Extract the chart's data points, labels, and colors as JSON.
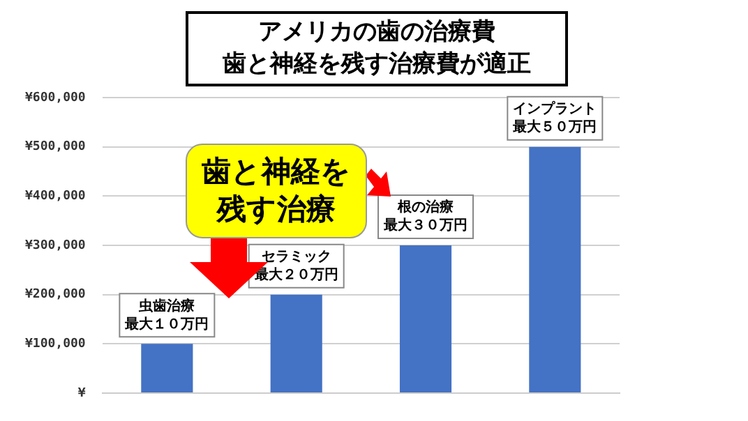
{
  "chart_data": {
    "type": "bar",
    "title": "アメリカの歯の治療費",
    "subtitle": "歯と神経を残す治療費が適正",
    "categories": [
      "虫歯治療",
      "セラミック",
      "根の治療",
      "インプラント"
    ],
    "values": [
      100000,
      200000,
      300000,
      500000
    ],
    "value_labels": [
      "最大１０万円",
      "最大２０万円",
      "最大３０万円",
      "最大５０万円"
    ],
    "color": "#4472c4",
    "ylim": [
      0,
      600000
    ],
    "yticks": [
      {
        "value": 0,
        "label": "¥"
      },
      {
        "value": 100000,
        "label": "¥100,000"
      },
      {
        "value": 200000,
        "label": "¥200,000"
      },
      {
        "value": 300000,
        "label": "¥300,000"
      },
      {
        "value": 400000,
        "label": "¥400,000"
      },
      {
        "value": 500000,
        "label": "¥500,000"
      },
      {
        "value": 600000,
        "label": "¥600,000"
      }
    ],
    "grid": "y",
    "tick_labels": "y",
    "annotations": [
      "歯と神経を残す治療"
    ]
  }
}
